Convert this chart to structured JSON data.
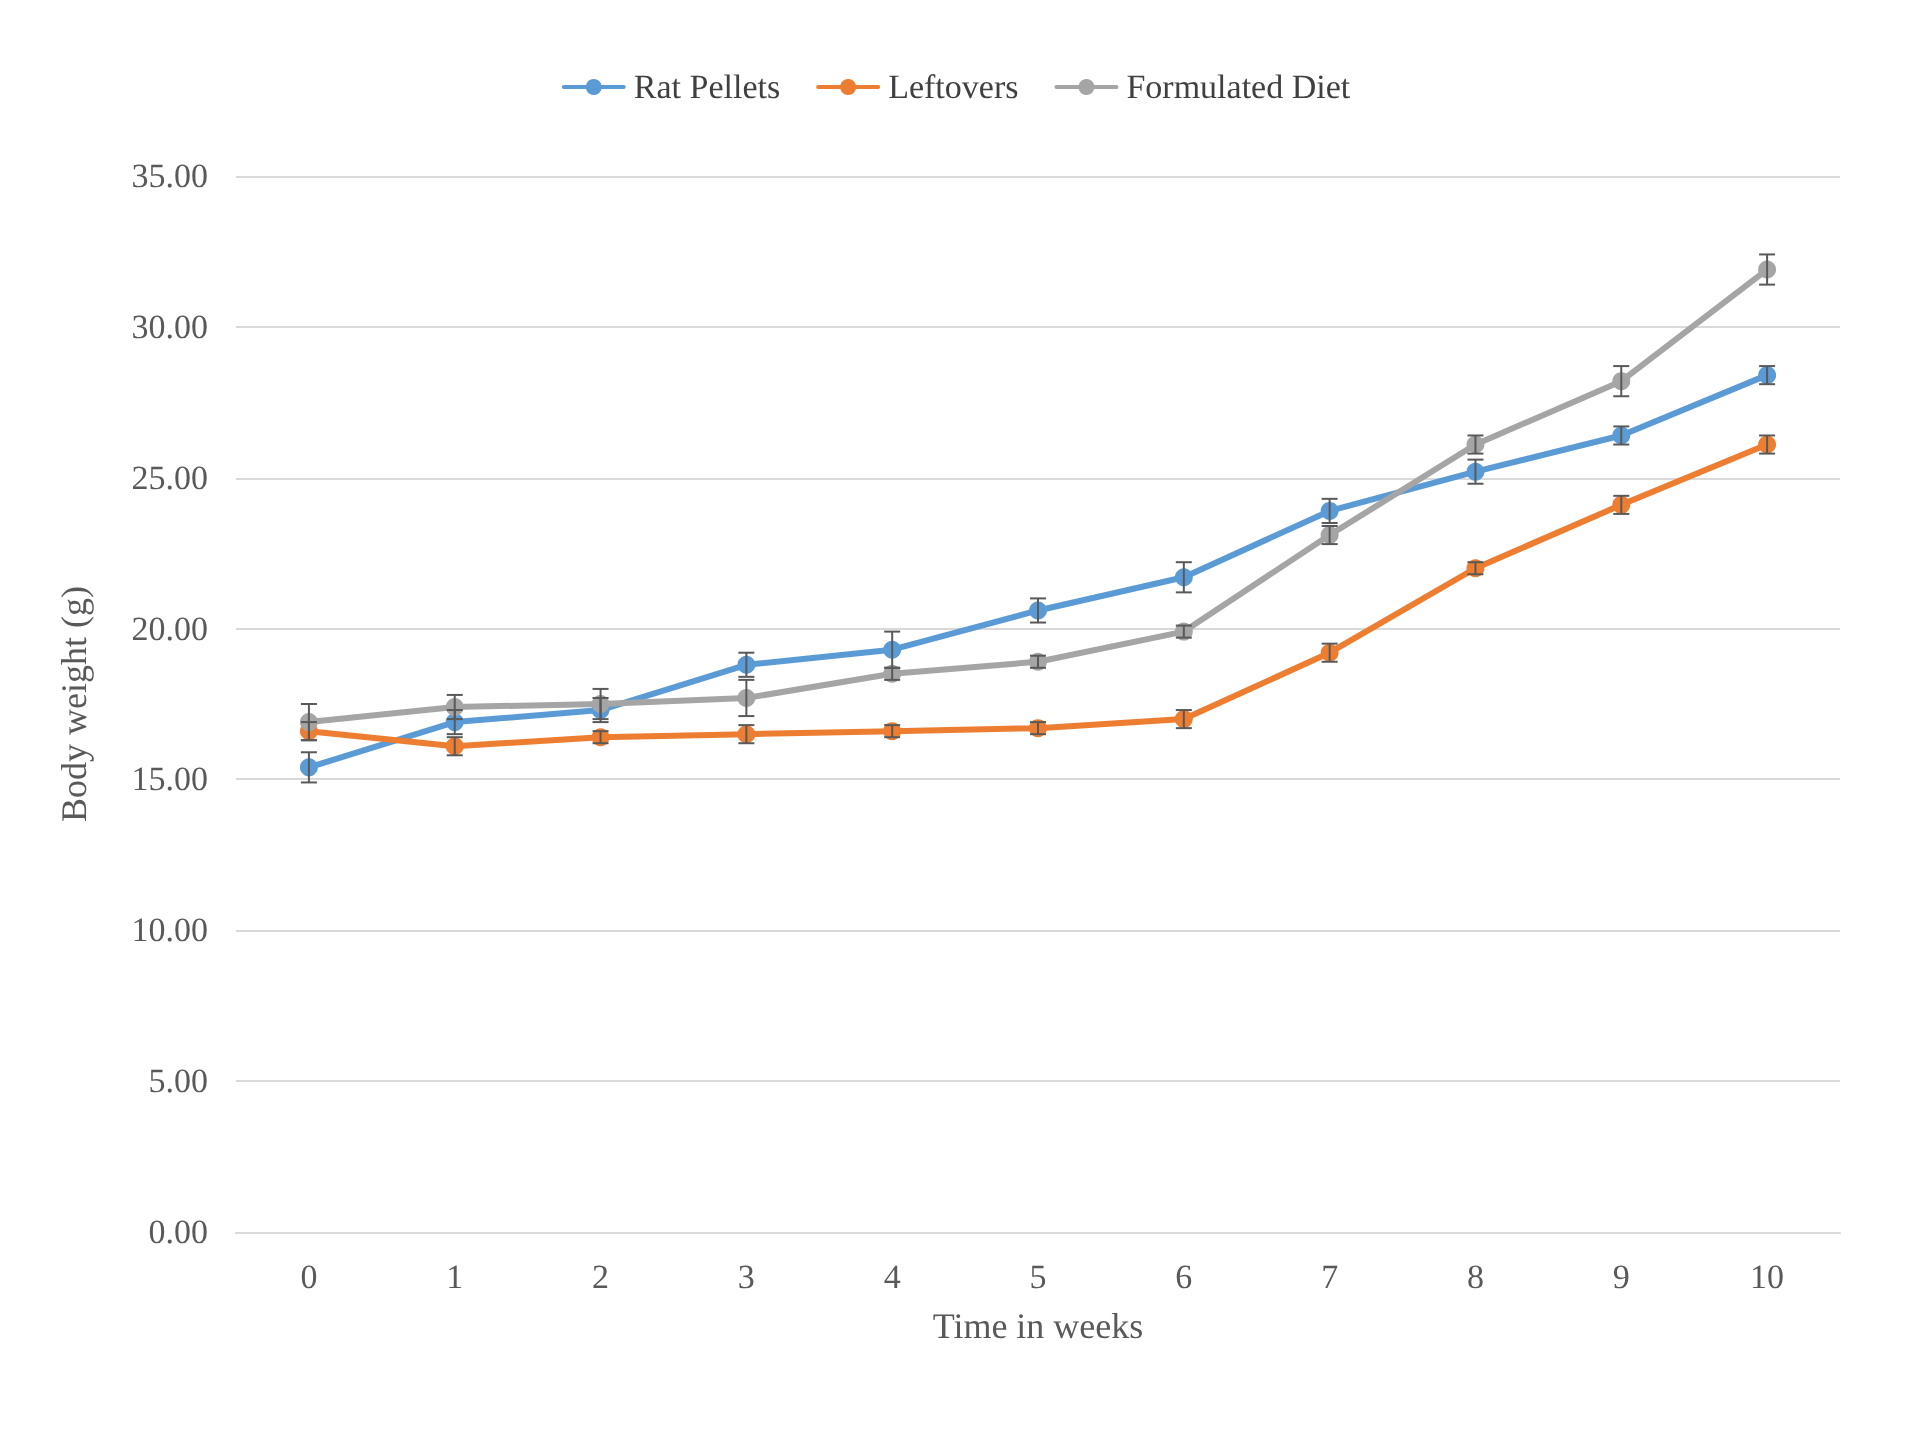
{
  "chart_data": {
    "type": "line",
    "xlabel": "Time in weeks",
    "ylabel": "Body weight (g)",
    "categories": [
      "0",
      "1",
      "2",
      "3",
      "4",
      "5",
      "6",
      "7",
      "8",
      "9",
      "10"
    ],
    "series": [
      {
        "name": "Rat Pellets",
        "color": "#5b9bd5",
        "values": [
          15.4,
          16.9,
          17.3,
          18.8,
          19.3,
          20.6,
          21.7,
          23.9,
          25.2,
          26.4,
          28.4
        ],
        "errors": [
          0.5,
          0.4,
          0.4,
          0.4,
          0.6,
          0.4,
          0.5,
          0.4,
          0.4,
          0.3,
          0.3
        ]
      },
      {
        "name": "Leftovers",
        "color": "#ed7d31",
        "values": [
          16.6,
          16.1,
          16.4,
          16.5,
          16.6,
          16.7,
          17.0,
          19.2,
          22.0,
          24.1,
          26.1
        ],
        "errors": [
          0.3,
          0.3,
          0.2,
          0.3,
          0.2,
          0.2,
          0.3,
          0.3,
          0.2,
          0.3,
          0.3
        ]
      },
      {
        "name": "Formulated Diet",
        "color": "#a5a5a5",
        "values": [
          16.9,
          17.4,
          17.5,
          17.7,
          18.5,
          18.9,
          19.9,
          23.1,
          26.1,
          28.2,
          31.9
        ],
        "errors": [
          0.6,
          0.4,
          0.5,
          0.6,
          0.2,
          0.2,
          0.2,
          0.3,
          0.3,
          0.5,
          0.5
        ]
      }
    ],
    "ylim": [
      0,
      35
    ],
    "yticks": [
      {
        "value": 0,
        "label": "0.00"
      },
      {
        "value": 5,
        "label": "5.00"
      },
      {
        "value": 10,
        "label": "10.00"
      },
      {
        "value": 15,
        "label": "15.00"
      },
      {
        "value": 20,
        "label": "20.00"
      },
      {
        "value": 25,
        "label": "25.00"
      },
      {
        "value": 30,
        "label": "30.00"
      },
      {
        "value": 35,
        "label": "35.00"
      }
    ],
    "grid": "y",
    "legend": "top",
    "marker": "circle",
    "line_style": "solid"
  }
}
